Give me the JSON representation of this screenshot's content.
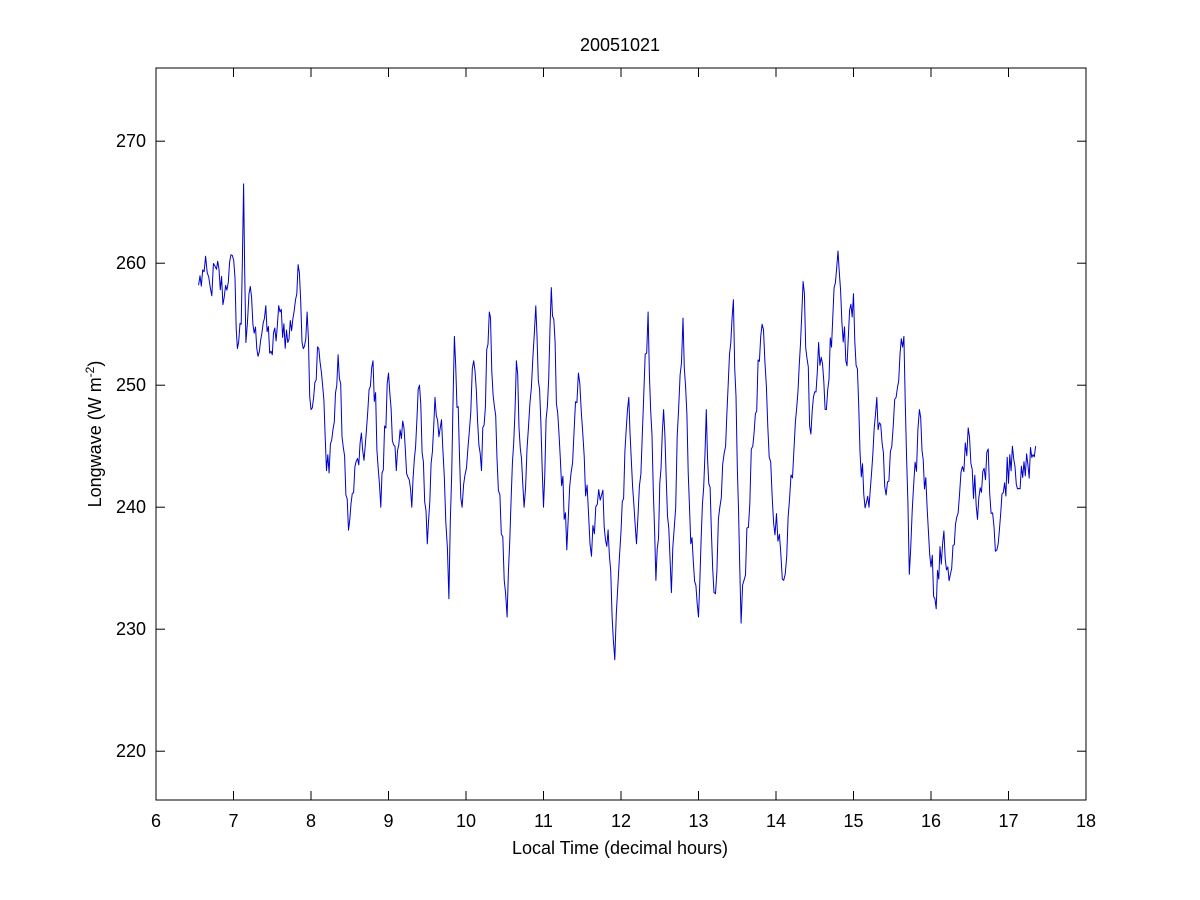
{
  "chart_data": {
    "type": "line",
    "title": "20051021",
    "xlabel": "Local Time (decimal hours)",
    "ylabel": "Longwave (W m",
    "ylabel_superscript": "-2",
    "ylabel_suffix": ")",
    "xlim": [
      6,
      18
    ],
    "ylim": [
      216,
      276
    ],
    "xticks": [
      6,
      7,
      8,
      9,
      10,
      11,
      12,
      13,
      14,
      15,
      16,
      17,
      18
    ],
    "yticks": [
      220,
      230,
      240,
      250,
      260,
      270
    ],
    "grid": false,
    "legend": "none",
    "series": [
      {
        "color": "#0000cc",
        "anchors": [
          [
            6.55,
            258.2
          ],
          [
            6.62,
            259.3
          ],
          [
            6.7,
            258.0
          ],
          [
            6.78,
            259.5
          ],
          [
            6.88,
            257.2
          ],
          [
            6.95,
            260.1
          ],
          [
            7.02,
            258.8
          ],
          [
            7.05,
            253.0
          ],
          [
            7.1,
            255.0
          ],
          [
            7.13,
            266.5
          ],
          [
            7.16,
            253.5
          ],
          [
            7.2,
            257.5
          ],
          [
            7.3,
            253.0
          ],
          [
            7.4,
            255.5
          ],
          [
            7.5,
            252.5
          ],
          [
            7.6,
            256.0
          ],
          [
            7.7,
            253.5
          ],
          [
            7.8,
            257.0
          ],
          [
            7.85,
            259.2
          ],
          [
            7.9,
            253.0
          ],
          [
            7.95,
            256.0
          ],
          [
            8.0,
            248.0
          ],
          [
            8.1,
            253.0
          ],
          [
            8.15,
            250.0
          ],
          [
            8.2,
            243.0
          ],
          [
            8.3,
            247.0
          ],
          [
            8.35,
            252.5
          ],
          [
            8.45,
            241.0
          ],
          [
            8.5,
            239.0
          ],
          [
            8.6,
            244.0
          ],
          [
            8.7,
            245.0
          ],
          [
            8.8,
            252.0
          ],
          [
            8.9,
            240.0
          ],
          [
            9.0,
            251.0
          ],
          [
            9.1,
            243.0
          ],
          [
            9.2,
            246.5
          ],
          [
            9.3,
            240.0
          ],
          [
            9.4,
            250.0
          ],
          [
            9.5,
            237.0
          ],
          [
            9.6,
            249.0
          ],
          [
            9.7,
            245.0
          ],
          [
            9.78,
            232.5
          ],
          [
            9.85,
            254.0
          ],
          [
            9.95,
            240.0
          ],
          [
            10.1,
            252.0
          ],
          [
            10.2,
            243.0
          ],
          [
            10.3,
            256.0
          ],
          [
            10.4,
            244.0
          ],
          [
            10.53,
            231.0
          ],
          [
            10.65,
            252.0
          ],
          [
            10.75,
            240.0
          ],
          [
            10.9,
            256.5
          ],
          [
            11.0,
            240.0
          ],
          [
            11.1,
            258.0
          ],
          [
            11.2,
            246.0
          ],
          [
            11.3,
            236.5
          ],
          [
            11.45,
            251.0
          ],
          [
            11.6,
            237.0
          ],
          [
            11.75,
            241.0
          ],
          [
            11.85,
            236.0
          ],
          [
            11.92,
            227.5
          ],
          [
            12.0,
            238.0
          ],
          [
            12.1,
            249.0
          ],
          [
            12.2,
            237.0
          ],
          [
            12.35,
            256.0
          ],
          [
            12.45,
            234.0
          ],
          [
            12.55,
            248.0
          ],
          [
            12.65,
            233.0
          ],
          [
            12.8,
            255.5
          ],
          [
            12.9,
            237.0
          ],
          [
            13.0,
            231.0
          ],
          [
            13.1,
            248.0
          ],
          [
            13.2,
            233.0
          ],
          [
            13.35,
            245.0
          ],
          [
            13.45,
            257.0
          ],
          [
            13.55,
            230.5
          ],
          [
            13.7,
            245.0
          ],
          [
            13.82,
            255.0
          ],
          [
            13.95,
            241.0
          ],
          [
            14.1,
            234.0
          ],
          [
            14.25,
            247.0
          ],
          [
            14.35,
            258.5
          ],
          [
            14.45,
            246.0
          ],
          [
            14.55,
            253.5
          ],
          [
            14.65,
            248.0
          ],
          [
            14.75,
            258.0
          ],
          [
            14.8,
            261.0
          ],
          [
            14.9,
            252.0
          ],
          [
            15.0,
            257.5
          ],
          [
            15.1,
            242.5
          ],
          [
            15.2,
            240.0
          ],
          [
            15.3,
            249.0
          ],
          [
            15.42,
            241.0
          ],
          [
            15.55,
            249.0
          ],
          [
            15.65,
            254.0
          ],
          [
            15.72,
            234.5
          ],
          [
            15.85,
            248.0
          ],
          [
            15.95,
            240.0
          ],
          [
            16.05,
            232.5
          ],
          [
            16.15,
            237.0
          ],
          [
            16.25,
            234.5
          ],
          [
            16.35,
            239.5
          ],
          [
            16.48,
            246.5
          ],
          [
            16.6,
            239.0
          ],
          [
            16.72,
            244.5
          ],
          [
            16.85,
            236.5
          ],
          [
            16.95,
            242.0
          ],
          [
            17.05,
            245.0
          ],
          [
            17.15,
            241.5
          ],
          [
            17.25,
            243.5
          ],
          [
            17.35,
            245.0
          ]
        ]
      }
    ]
  }
}
